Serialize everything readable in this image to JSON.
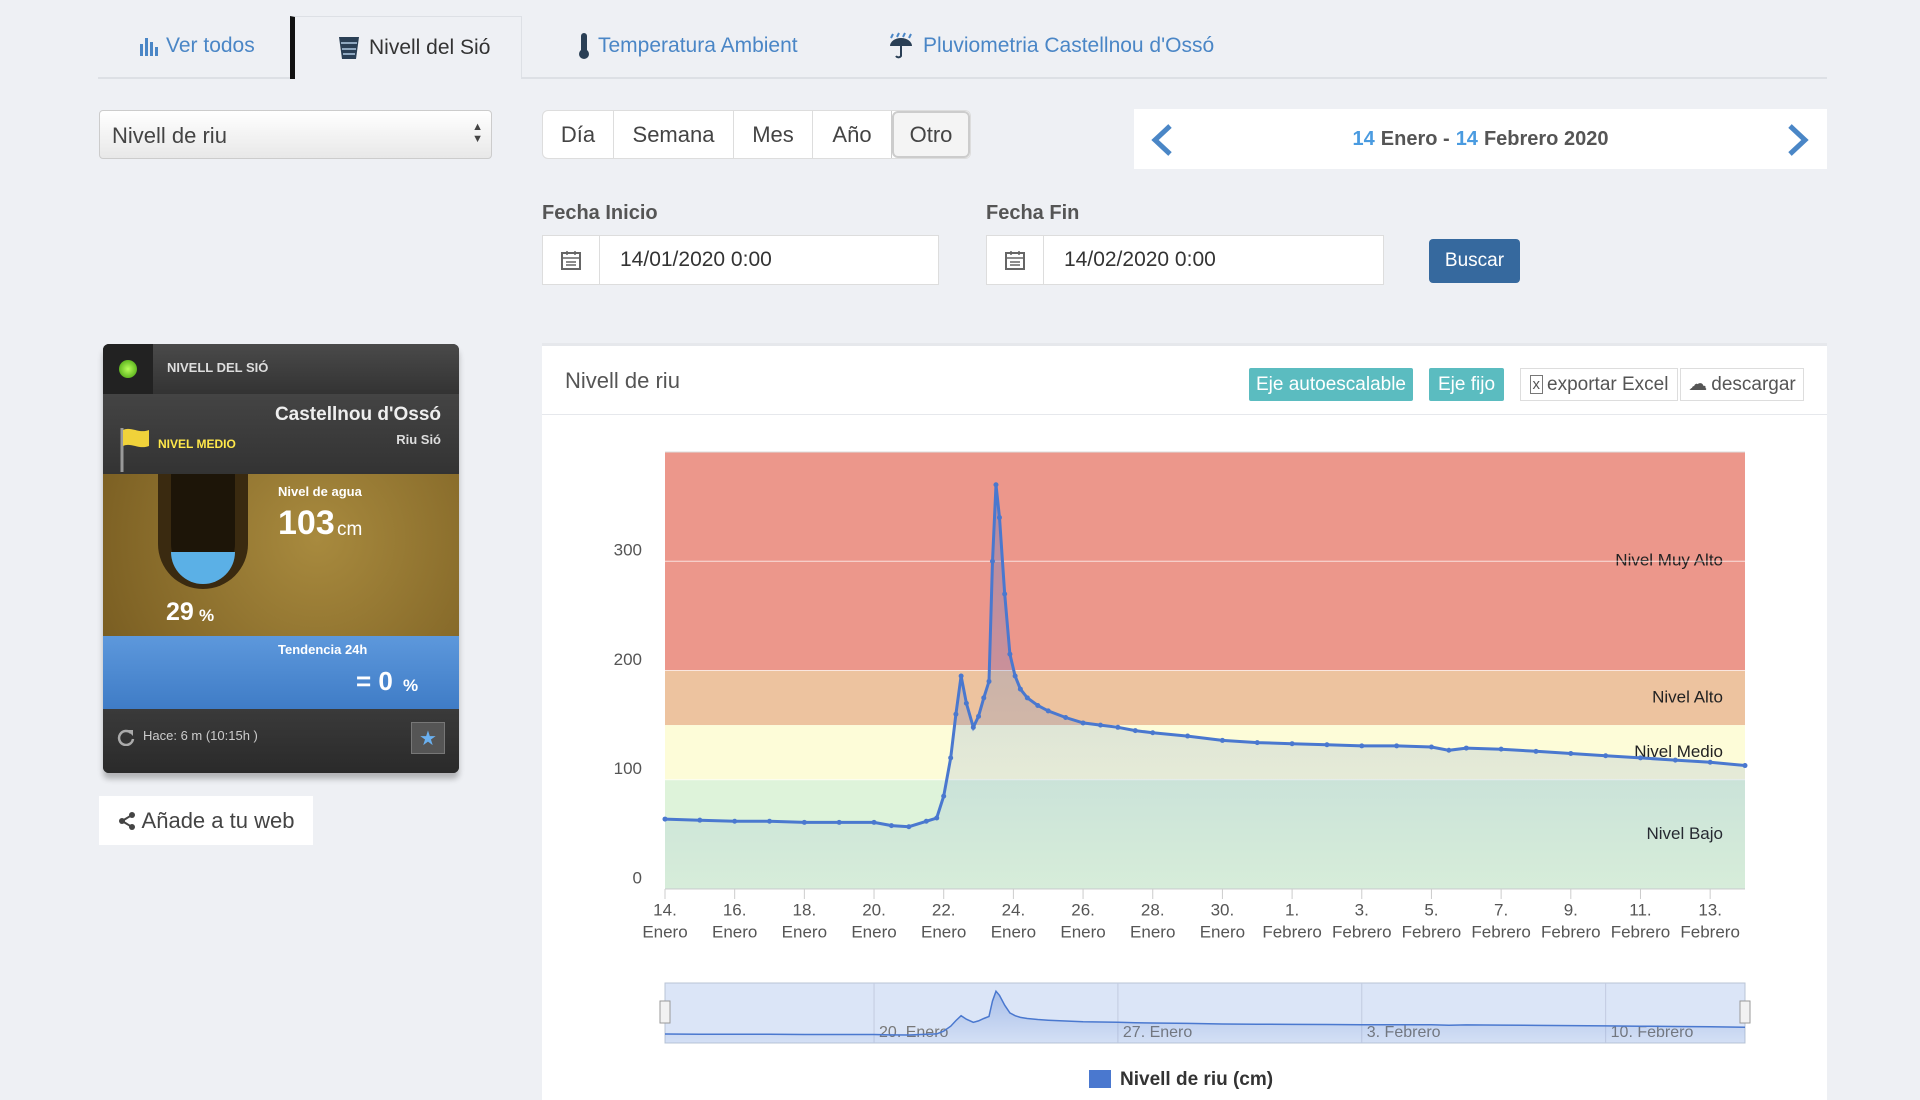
{
  "tabs": [
    "Ver todos",
    "Nivell del Sió",
    "Temperatura Ambient",
    "Pluviometria Castellnou d'Ossó"
  ],
  "select": "Nivell de riu",
  "periods": [
    "Día",
    "Semana",
    "Mes",
    "Año",
    "Otro"
  ],
  "date_range": {
    "start_day": "14",
    "start_month": "Enero -",
    "end_day": "14",
    "end_month": "Febrero 2020"
  },
  "fecha_inicio": {
    "label": "Fecha Inicio",
    "value": "14/01/2020 0:00"
  },
  "fecha_fin": {
    "label": "Fecha Fin",
    "value": "14/02/2020 0:00"
  },
  "buscar": "Buscar",
  "widget": {
    "header": "NIVELL DEL SIÓ",
    "station": "Castellnou d'Ossó",
    "river": "Riu Sió",
    "status": "NIVEL MEDIO",
    "level_label": "Nivel de agua",
    "level": "103",
    "level_unit": "cm",
    "percent": "29",
    "percent_unit": "%",
    "trend_label": "Tendencia 24h",
    "trend": "= 0",
    "trend_unit": "%",
    "updated": "Hace: 6 m (10:15h )"
  },
  "share": "Añade a tu web",
  "buttons": [
    "Eje autoescalable",
    "Eje fijo",
    "exportar Excel",
    "descargar"
  ],
  "chart_data": {
    "type": "line",
    "title": "Nivell de riu",
    "x": [
      0,
      1,
      2,
      3,
      4,
      5,
      6,
      6.5,
      7,
      7.5,
      7.8,
      8.0,
      8.2,
      8.35,
      8.5,
      8.65,
      8.85,
      9.0,
      9.15,
      9.3,
      9.4,
      9.5,
      9.6,
      9.75,
      9.9,
      10.05,
      10.2,
      10.4,
      10.7,
      11,
      11.5,
      12,
      12.5,
      13,
      13.5,
      14,
      15,
      16,
      17,
      18,
      19,
      20,
      21,
      22,
      22.5,
      23,
      24,
      25,
      26,
      27,
      28,
      29,
      30,
      31
    ],
    "series": [
      {
        "name": "Nivell de riu (cm)",
        "color": "#4a78cf",
        "values": [
          64,
          63,
          62,
          62,
          61,
          61,
          61,
          58,
          57,
          62,
          65,
          85,
          120,
          160,
          195,
          170,
          148,
          158,
          175,
          190,
          300,
          370,
          340,
          270,
          215,
          195,
          183,
          175,
          168,
          163,
          157,
          152,
          150,
          148,
          145,
          143,
          140,
          136,
          134,
          133,
          132,
          131,
          131,
          130,
          127,
          129,
          128,
          126,
          124,
          122,
          120,
          118,
          116,
          113
        ]
      }
    ],
    "xlim": [
      0,
      31
    ],
    "xticks": [
      {
        "value": 0,
        "label": "14."
      },
      {
        "value": 2,
        "label": "16."
      },
      {
        "value": 4,
        "label": "18."
      },
      {
        "value": 6,
        "label": "20."
      },
      {
        "value": 8,
        "label": "22."
      },
      {
        "value": 10,
        "label": "24."
      },
      {
        "value": 12,
        "label": "26."
      },
      {
        "value": 14,
        "label": "28."
      },
      {
        "value": 16,
        "label": "30."
      },
      {
        "value": 18,
        "label": "1."
      },
      {
        "value": 20,
        "label": "3."
      },
      {
        "value": 22,
        "label": "5."
      },
      {
        "value": 24,
        "label": "7."
      },
      {
        "value": 26,
        "label": "9."
      },
      {
        "value": 28,
        "label": "11."
      },
      {
        "value": 30,
        "label": "13."
      }
    ],
    "xtick_months": [
      "Enero",
      "Enero",
      "Enero",
      "Enero",
      "Enero",
      "Enero",
      "Enero",
      "Enero",
      "Enero",
      "Febrero",
      "Febrero",
      "Febrero",
      "Febrero",
      "Febrero",
      "Febrero",
      "Febrero"
    ],
    "ylim": [
      0,
      400
    ],
    "yticks": [
      0,
      100,
      200,
      300
    ],
    "grid": true,
    "bands": [
      {
        "from": 200,
        "to": 400,
        "label": "Nivel Muy Alto",
        "color": "#ec978b"
      },
      {
        "from": 150,
        "to": 200,
        "label": "Nivel Alto",
        "color": "#edc39f"
      },
      {
        "from": 100,
        "to": 150,
        "label": "Nivel Medio",
        "color": "#fdfcd8"
      },
      {
        "from": 0,
        "to": 100,
        "label": "Nivel Bajo",
        "color": "#def3da"
      }
    ],
    "navigator_ticks": [
      {
        "value": 6,
        "label": "20. Enero"
      },
      {
        "value": 13,
        "label": "27. Enero"
      },
      {
        "value": 20,
        "label": "3. Febrero"
      },
      {
        "value": 27,
        "label": "10. Febrero"
      }
    ]
  }
}
